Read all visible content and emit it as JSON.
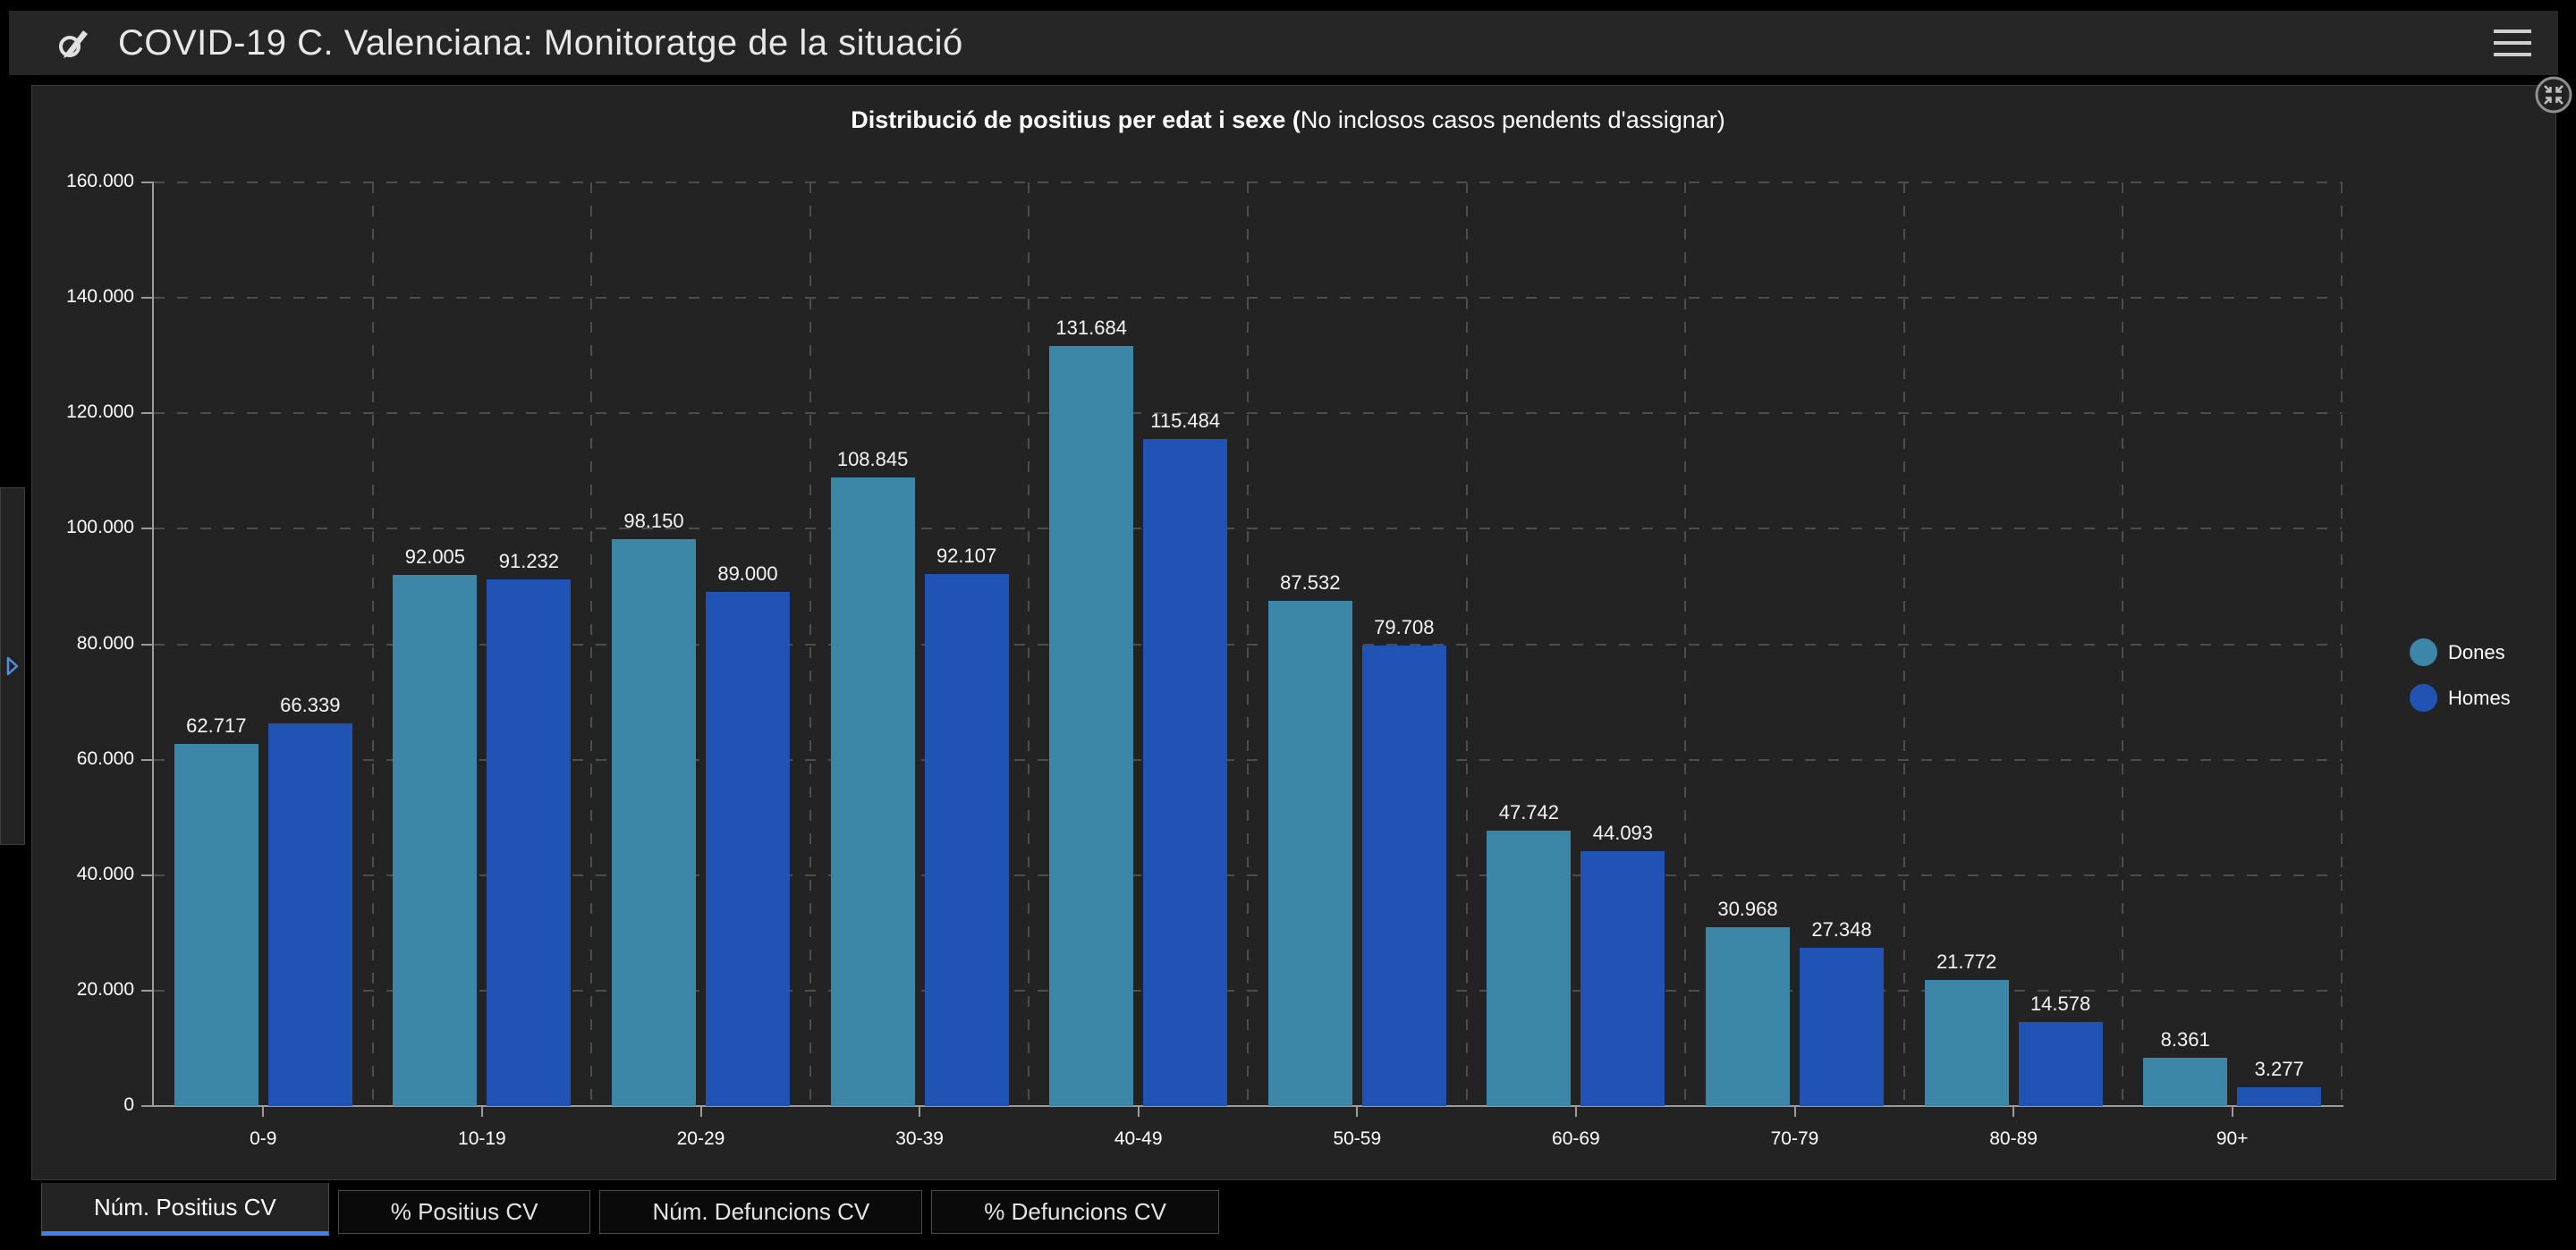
{
  "header": {
    "title": "COVID-19 C. Valenciana: Monitoratge de la situació",
    "logo_icon": "pencil-circle-logo",
    "menu_icon": "hamburger-menu"
  },
  "panel": {
    "collapse_icon": "collapse-inward-arrows",
    "expander_icon": "blue-right-triangle"
  },
  "chart_data": {
    "type": "bar",
    "title_bold": "Distribució de positius per edat i sexe (",
    "title_regular": "No inclosos casos pendents d'assignar)",
    "categories": [
      "0-9",
      "10-19",
      "20-29",
      "30-39",
      "40-49",
      "50-59",
      "60-69",
      "70-79",
      "80-89",
      "90+"
    ],
    "series": [
      {
        "name": "Dones",
        "color": "#3c86a8",
        "values": [
          62717,
          92005,
          98150,
          108845,
          131684,
          87532,
          47742,
          30968,
          21772,
          8361
        ],
        "labels": [
          "62.717",
          "92.005",
          "98.150",
          "108.845",
          "131.684",
          "87.532",
          "47.742",
          "30.968",
          "21.772",
          "8.361"
        ]
      },
      {
        "name": "Homes",
        "color": "#2053b4",
        "values": [
          66339,
          91232,
          89000,
          92107,
          115484,
          79708,
          44093,
          27348,
          14578,
          3277
        ],
        "labels": [
          "66.339",
          "91.232",
          "89.000",
          "92.107",
          "115.484",
          "79.708",
          "44.093",
          "27.348",
          "14.578",
          "3.277"
        ]
      }
    ],
    "ylim": [
      0,
      160000
    ],
    "y_axis": {
      "ticks": [
        {
          "label": "160.000",
          "value": 160000
        },
        {
          "label": "140.000",
          "value": 140000
        },
        {
          "label": "120.000",
          "value": 120000
        },
        {
          "label": "100.000",
          "value": 100000
        },
        {
          "label": "80.000",
          "value": 80000
        },
        {
          "label": "60.000",
          "value": 60000
        },
        {
          "label": "40.000",
          "value": 40000
        },
        {
          "label": "20.000",
          "value": 20000
        },
        {
          "label": "0",
          "value": 0
        }
      ]
    },
    "grid": "dashed, horizontal at every 20.000 and vertical at category boundaries",
    "legend_position": "right"
  },
  "tabs": [
    {
      "label": "Núm. Positius CV",
      "active": true
    },
    {
      "label": "% Positius CV",
      "active": false
    },
    {
      "label": "Núm. Defuncions CV",
      "active": false
    },
    {
      "label": "% Defuncions CV",
      "active": false
    }
  ],
  "colors": {
    "page_background": "#000000",
    "header_background": "#262626",
    "panel_background": "#232323",
    "gridline": "#4d4d4d",
    "axis": "#9b9b9b",
    "text": "#ffffff",
    "dones_bar": "#3c86a8",
    "homes_bar": "#2053b4",
    "active_tab_underline": "#3e82f0",
    "expander_arrow": "#4c8fe8"
  }
}
